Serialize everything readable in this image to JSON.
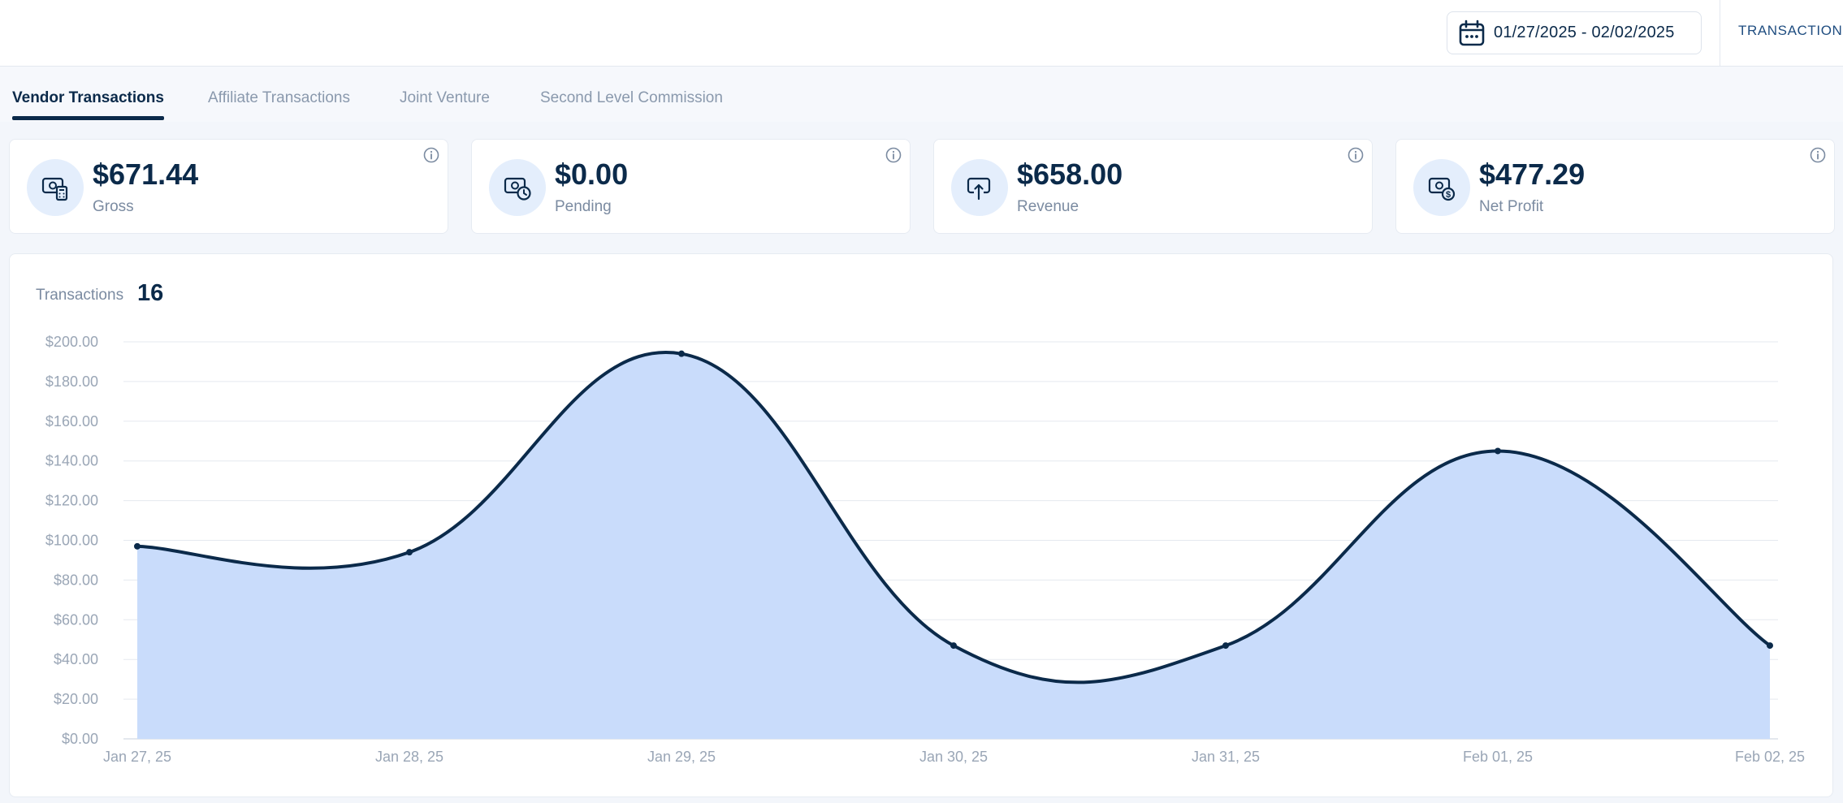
{
  "header": {
    "date_range": "01/27/2025 - 02/02/2025",
    "nav_link": "TRANSACTIONS"
  },
  "tabs": [
    {
      "label": "Vendor Transactions",
      "active": true
    },
    {
      "label": "Affiliate Transactions",
      "active": false
    },
    {
      "label": "Joint Venture",
      "active": false
    },
    {
      "label": "Second Level Commission",
      "active": false
    }
  ],
  "cards": [
    {
      "value": "$671.44",
      "label": "Gross",
      "icon": "money-calculator-icon"
    },
    {
      "value": "$0.00",
      "label": "Pending",
      "icon": "money-clock-icon"
    },
    {
      "value": "$658.00",
      "label": "Revenue",
      "icon": "money-up-arrow-icon"
    },
    {
      "value": "$477.29",
      "label": "Net Profit",
      "icon": "money-coins-icon"
    }
  ],
  "chart_header": {
    "label": "Transactions",
    "count": "16"
  },
  "chart_data": {
    "type": "area",
    "categories": [
      "Jan 27, 25",
      "Jan 28, 25",
      "Jan 29, 25",
      "Jan 30, 25",
      "Jan 31, 25",
      "Feb 01, 25",
      "Feb 02, 25"
    ],
    "values": [
      97,
      94,
      194,
      47,
      47,
      145,
      47
    ],
    "yticks": [
      "$0.00",
      "$20.00",
      "$40.00",
      "$60.00",
      "$80.00",
      "$100.00",
      "$120.00",
      "$140.00",
      "$160.00",
      "$180.00",
      "$200.00"
    ],
    "ylim": [
      0,
      200
    ],
    "grid": true,
    "colors": {
      "line": "#0b2a4a",
      "fill": "#c9dcfb"
    }
  },
  "colors": {
    "primary": "#0b2a4a",
    "icon_bg": "#e4eefc",
    "muted_text": "#7b8ba1"
  }
}
